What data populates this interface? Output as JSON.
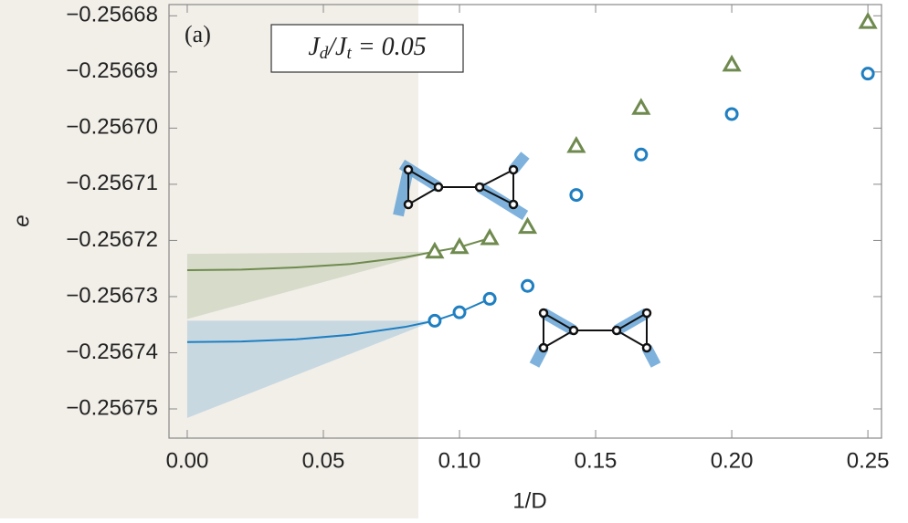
{
  "chart_data": {
    "type": "scatter",
    "panel_label": "(a)",
    "annotation": "Jd/Jt = 0.05",
    "x_label": "1/D",
    "y_label": "e",
    "xlim": [
      -0.0067,
      0.255
    ],
    "ylim": [
      -0.2567552,
      -0.256678
    ],
    "xticks": [
      {
        "value": 0,
        "label": "0.00"
      },
      {
        "value": 0.05,
        "label": "0.05"
      },
      {
        "value": 0.1,
        "label": "0.10"
      },
      {
        "value": 0.15,
        "label": "0.15"
      },
      {
        "value": 0.2,
        "label": "0.20"
      },
      {
        "value": 0.25,
        "label": "0.25"
      }
    ],
    "yticks": [
      {
        "value": -0.25668,
        "label": "−0.25668"
      },
      {
        "value": -0.25669,
        "label": "−0.25669"
      },
      {
        "value": -0.2567,
        "label": "−0.25670"
      },
      {
        "value": -0.25671,
        "label": "−0.25671"
      },
      {
        "value": -0.25672,
        "label": "−0.25672"
      },
      {
        "value": -0.25673,
        "label": "−0.25673"
      },
      {
        "value": -0.25674,
        "label": "−0.25674"
      },
      {
        "value": -0.25675,
        "label": "−0.25675"
      }
    ],
    "series": [
      {
        "color": "#6f8a4e",
        "marker": "triangle",
        "x": [
          0.0909,
          0.1,
          0.1111,
          0.125,
          0.1429,
          0.1667,
          0.2,
          0.25
        ],
        "values": [
          -0.256722,
          -0.2567212,
          -0.2567196,
          -0.2567176,
          -0.2567032,
          -0.2566964,
          -0.2566887,
          -0.2566811
        ]
      },
      {
        "color": "#1f7fc1",
        "marker": "circle",
        "x": [
          0.0909,
          0.1,
          0.1111,
          0.125,
          0.1429,
          0.1667,
          0.2,
          0.25
        ],
        "values": [
          -0.2567343,
          -0.2567328,
          -0.2567304,
          -0.2567281,
          -0.2567119,
          -0.2567047,
          -0.2566975,
          -0.2566903
        ]
      }
    ],
    "fits": [
      {
        "color": "#6f8a4e",
        "x": [
          0,
          0.02,
          0.04,
          0.06,
          0.08,
          0.0909,
          0.1,
          0.1111
        ],
        "values": [
          -0.2567253,
          -0.2567252,
          -0.2567248,
          -0.2567242,
          -0.256723,
          -0.256722,
          -0.2567212,
          -0.2567196
        ]
      },
      {
        "color": "#1f7fc1",
        "x": [
          0,
          0.02,
          0.04,
          0.06,
          0.08,
          0.0909,
          0.1,
          0.1111
        ],
        "values": [
          -0.2567381,
          -0.256738,
          -0.2567376,
          -0.2567368,
          -0.2567354,
          -0.2567343,
          -0.2567328,
          -0.2567304
        ]
      }
    ],
    "bands": [
      {
        "color": "#6f8a4e",
        "x": [
          0,
          0.0909
        ],
        "upper": [
          -0.2567224,
          -0.256722
        ],
        "lower": [
          -0.256734,
          -0.256722
        ]
      },
      {
        "color": "#1f7fc1",
        "x": [
          0,
          0.0909
        ],
        "upper": [
          -0.2567343,
          -0.2567343
        ],
        "lower": [
          -0.2567516,
          -0.2567343
        ]
      }
    ]
  }
}
